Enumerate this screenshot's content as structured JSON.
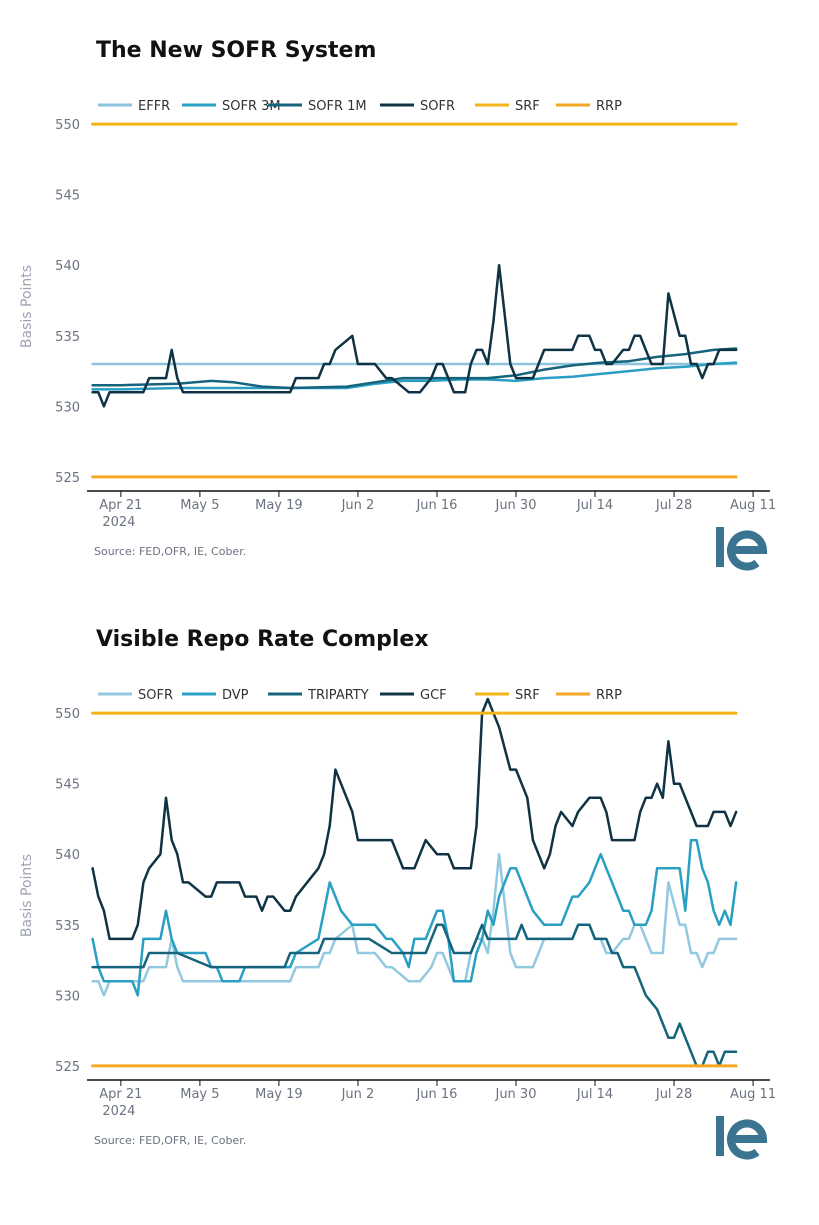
{
  "logo_text": "IE",
  "colors": {
    "logo": "#3a7490",
    "axis": "#111111",
    "srf": "#f5b31a",
    "rrp": "#f5a623"
  },
  "chart_data": [
    {
      "type": "line",
      "title": "The New SOFR System",
      "ylabel": "Basis Points",
      "ylim": [
        524,
        551
      ],
      "yticks": [
        525,
        530,
        535,
        540,
        545,
        550
      ],
      "xlim": [
        -6,
        115
      ],
      "xticks": [
        {
          "x": 0,
          "label": "Apr 21",
          "sub": "2024"
        },
        {
          "x": 14,
          "label": "May 5"
        },
        {
          "x": 28,
          "label": "May 19"
        },
        {
          "x": 42,
          "label": "Jun 2"
        },
        {
          "x": 56,
          "label": "Jun 16"
        },
        {
          "x": 70,
          "label": "Jun 30"
        },
        {
          "x": 84,
          "label": "Jul 14"
        },
        {
          "x": 98,
          "label": "Jul 28"
        },
        {
          "x": 112,
          "label": "Aug 11"
        }
      ],
      "source": "Source: FED,OFR, IE, Cober.",
      "series": [
        {
          "name": "EFFR",
          "color": "#8ec3de",
          "width": 2.5,
          "x": [
            -5,
            109
          ],
          "y": [
            533,
            533
          ]
        },
        {
          "name": "SOFR 3M",
          "color": "#2a9fc4",
          "width": 2.5,
          "x": [
            -5,
            0,
            10,
            20,
            30,
            40,
            45,
            50,
            55,
            60,
            65,
            70,
            75,
            80,
            85,
            90,
            95,
            100,
            105,
            109
          ],
          "y": [
            531.2,
            531.2,
            531.3,
            531.3,
            531.3,
            531.3,
            531.6,
            531.8,
            531.8,
            531.9,
            531.9,
            531.8,
            532.0,
            532.1,
            532.3,
            532.5,
            532.7,
            532.8,
            533.0,
            533.1
          ]
        },
        {
          "name": "SOFR 1M",
          "color": "#15647c",
          "width": 2.5,
          "x": [
            -5,
            0,
            10,
            16,
            20,
            25,
            30,
            40,
            45,
            50,
            55,
            60,
            65,
            70,
            75,
            80,
            85,
            90,
            95,
            100,
            105,
            109
          ],
          "y": [
            531.5,
            531.5,
            531.6,
            531.8,
            531.7,
            531.4,
            531.3,
            531.4,
            531.7,
            532.0,
            532.0,
            532.0,
            532.0,
            532.2,
            532.6,
            532.9,
            533.1,
            533.2,
            533.5,
            533.7,
            534.0,
            534.1
          ]
        },
        {
          "name": "SOFR",
          "color": "#0f3344",
          "width": 2.5,
          "x": [
            -5,
            -4,
            -3,
            -2,
            0,
            4,
            5,
            8,
            9,
            10,
            11,
            16,
            21,
            25,
            30,
            31,
            35,
            36,
            37,
            38,
            41,
            42,
            44,
            45,
            47,
            48,
            51,
            52,
            53,
            55,
            56,
            57,
            58,
            59,
            61,
            62,
            63,
            64,
            65,
            66,
            67,
            69,
            70,
            71,
            72,
            73,
            75,
            77,
            78,
            79,
            80,
            81,
            83,
            84,
            85,
            86,
            87,
            89,
            90,
            91,
            92,
            93,
            94,
            95,
            96,
            97,
            99,
            100,
            101,
            102,
            103,
            104,
            105,
            106,
            107,
            108,
            109
          ],
          "y": [
            531,
            531,
            530,
            531,
            531,
            531,
            532,
            532,
            534,
            532,
            531,
            531,
            531,
            531,
            531,
            532,
            532,
            533,
            533,
            534,
            535,
            533,
            533,
            533,
            532,
            532,
            531,
            531,
            531,
            532,
            533,
            533,
            532,
            531,
            531,
            533,
            534,
            534,
            533,
            536,
            540,
            533,
            532,
            532,
            532,
            532,
            534,
            534,
            534,
            534,
            534,
            535,
            535,
            534,
            534,
            533,
            533,
            534,
            534,
            535,
            535,
            534,
            533,
            533,
            533,
            538,
            535,
            535,
            533,
            533,
            532,
            533,
            533,
            534,
            534,
            534,
            534
          ]
        },
        {
          "name": "SRF",
          "color": "#f5b31a",
          "width": 3,
          "x": [
            -5,
            109
          ],
          "y": [
            550,
            550
          ]
        },
        {
          "name": "RRP",
          "color": "#f5a623",
          "width": 3,
          "x": [
            -5,
            109
          ],
          "y": [
            525,
            525
          ]
        }
      ]
    },
    {
      "type": "line",
      "title": "Visible Repo Rate Complex",
      "ylabel": "Basis Points",
      "ylim": [
        524,
        551
      ],
      "yticks": [
        525,
        530,
        535,
        540,
        545,
        550
      ],
      "xlim": [
        -6,
        115
      ],
      "xticks": [
        {
          "x": 0,
          "label": "Apr 21",
          "sub": "2024"
        },
        {
          "x": 14,
          "label": "May 5"
        },
        {
          "x": 28,
          "label": "May 19"
        },
        {
          "x": 42,
          "label": "Jun 2"
        },
        {
          "x": 56,
          "label": "Jun 16"
        },
        {
          "x": 70,
          "label": "Jun 30"
        },
        {
          "x": 84,
          "label": "Jul 14"
        },
        {
          "x": 98,
          "label": "Jul 28"
        },
        {
          "x": 112,
          "label": "Aug 11"
        }
      ],
      "source": "Source: FED,OFR, IE, Cober.",
      "series": [
        {
          "name": "SOFR",
          "color": "#93c9e0",
          "width": 2.5,
          "x": [
            -5,
            -4,
            -3,
            -2,
            -1,
            0,
            1,
            2,
            3,
            4,
            5,
            6,
            7,
            8,
            9,
            10,
            11,
            20,
            30,
            31,
            35,
            36,
            37,
            38,
            41,
            42,
            44,
            45,
            47,
            48,
            51,
            52,
            53,
            55,
            56,
            57,
            58,
            59,
            61,
            62,
            63,
            64,
            65,
            66,
            67,
            69,
            70,
            71,
            72,
            73,
            75,
            77,
            78,
            79,
            80,
            81,
            83,
            84,
            85,
            86,
            87,
            89,
            90,
            91,
            92,
            93,
            94,
            95,
            96,
            97,
            99,
            100,
            101,
            102,
            103,
            104,
            105,
            106,
            107,
            108,
            109
          ],
          "y": [
            531,
            531,
            530,
            531,
            531,
            531,
            531,
            531,
            531,
            531,
            532,
            532,
            532,
            532,
            534,
            532,
            531,
            531,
            531,
            532,
            532,
            533,
            533,
            534,
            535,
            533,
            533,
            533,
            532,
            532,
            531,
            531,
            531,
            532,
            533,
            533,
            532,
            531,
            531,
            533,
            534,
            534,
            533,
            536,
            540,
            533,
            532,
            532,
            532,
            532,
            534,
            534,
            534,
            534,
            534,
            535,
            535,
            534,
            534,
            533,
            533,
            534,
            534,
            535,
            535,
            534,
            533,
            533,
            533,
            538,
            535,
            535,
            533,
            533,
            532,
            533,
            533,
            534,
            534,
            534,
            534
          ]
        },
        {
          "name": "DVP",
          "color": "#2a9fc4",
          "width": 2.5,
          "x": [
            -5,
            -4,
            -3,
            -2,
            0,
            1,
            2,
            3,
            4,
            5,
            7,
            8,
            9,
            10,
            11,
            15,
            16,
            17,
            18,
            19,
            21,
            22,
            23,
            24,
            30,
            31,
            35,
            36,
            37,
            38,
            39,
            41,
            42,
            44,
            45,
            47,
            48,
            50,
            51,
            52,
            53,
            54,
            56,
            57,
            58,
            59,
            61,
            62,
            63,
            64,
            65,
            66,
            67,
            69,
            70,
            72,
            73,
            75,
            76,
            77,
            78,
            80,
            81,
            83,
            84,
            85,
            86,
            87,
            89,
            90,
            91,
            92,
            93,
            94,
            95,
            96,
            97,
            98,
            99,
            100,
            101,
            102,
            103,
            104,
            105,
            106,
            107,
            108,
            109
          ],
          "y": [
            534,
            532,
            531,
            531,
            531,
            531,
            531,
            530,
            534,
            534,
            534,
            536,
            534,
            533,
            533,
            533,
            532,
            532,
            531,
            531,
            531,
            532,
            532,
            532,
            532,
            533,
            534,
            536,
            538,
            537,
            536,
            535,
            535,
            535,
            535,
            534,
            534,
            533,
            532,
            534,
            534,
            534,
            536,
            536,
            534,
            531,
            531,
            531,
            533,
            534,
            536,
            535,
            537,
            539,
            539,
            537,
            536,
            535,
            535,
            535,
            535,
            537,
            537,
            538,
            539,
            540,
            539,
            538,
            536,
            536,
            535,
            535,
            535,
            536,
            539,
            539,
            539,
            539,
            539,
            536,
            541,
            541,
            539,
            538,
            536,
            535,
            536,
            535,
            538
          ]
        },
        {
          "name": "TRIPARTY",
          "color": "#15647c",
          "width": 2.5,
          "x": [
            -5,
            0,
            4,
            5,
            10,
            16,
            17,
            18,
            29,
            30,
            35,
            36,
            44,
            48,
            54,
            55,
            56,
            57,
            58,
            59,
            62,
            63,
            64,
            65,
            66,
            67,
            69,
            70,
            71,
            72,
            73,
            77,
            78,
            79,
            80,
            81,
            83,
            84,
            85,
            86,
            87,
            88,
            89,
            90,
            91,
            92,
            93,
            95,
            96,
            97,
            98,
            99,
            100,
            101,
            102,
            103,
            104,
            105,
            106,
            107,
            108,
            109
          ],
          "y": [
            532,
            532,
            532,
            533,
            533,
            532,
            532,
            532,
            532,
            533,
            533,
            534,
            534,
            533,
            533,
            534,
            535,
            535,
            534,
            533,
            533,
            534,
            535,
            534,
            534,
            534,
            534,
            534,
            535,
            534,
            534,
            534,
            534,
            534,
            534,
            535,
            535,
            534,
            534,
            534,
            533,
            533,
            532,
            532,
            532,
            531,
            530,
            529,
            528,
            527,
            527,
            528,
            527,
            526,
            525,
            525,
            526,
            526,
            525,
            526,
            526,
            526
          ]
        },
        {
          "name": "GCF",
          "color": "#0f3344",
          "width": 2.5,
          "x": [
            -5,
            -4,
            -3,
            -2,
            0,
            1,
            2,
            3,
            4,
            5,
            7,
            8,
            9,
            10,
            11,
            12,
            15,
            16,
            17,
            18,
            19,
            21,
            22,
            23,
            24,
            25,
            26,
            27,
            29,
            30,
            31,
            35,
            36,
            37,
            38,
            39,
            41,
            42,
            44,
            45,
            47,
            48,
            50,
            51,
            52,
            53,
            54,
            56,
            57,
            58,
            59,
            61,
            62,
            63,
            64,
            65,
            66,
            67,
            69,
            70,
            72,
            73,
            75,
            76,
            77,
            78,
            80,
            81,
            83,
            84,
            85,
            86,
            87,
            89,
            90,
            91,
            92,
            93,
            94,
            95,
            96,
            97,
            98,
            99,
            100,
            101,
            102,
            103,
            104,
            105,
            106,
            107,
            108,
            109
          ],
          "y": [
            539,
            537,
            536,
            534,
            534,
            534,
            534,
            535,
            538,
            539,
            540,
            544,
            541,
            540,
            538,
            538,
            537,
            537,
            538,
            538,
            538,
            538,
            537,
            537,
            537,
            536,
            537,
            537,
            536,
            536,
            537,
            539,
            540,
            542,
            546,
            545,
            543,
            541,
            541,
            541,
            541,
            541,
            539,
            539,
            539,
            540,
            541,
            540,
            540,
            540,
            539,
            539,
            539,
            542,
            550,
            551,
            550,
            549,
            546,
            546,
            544,
            541,
            539,
            540,
            542,
            543,
            542,
            543,
            544,
            544,
            544,
            543,
            541,
            541,
            541,
            541,
            543,
            544,
            544,
            545,
            544,
            548,
            545,
            545,
            544,
            543,
            542,
            542,
            542,
            543,
            543,
            543,
            542,
            543
          ]
        },
        {
          "name": "SRF",
          "color": "#f5b31a",
          "width": 3,
          "x": [
            -5,
            109
          ],
          "y": [
            550,
            550
          ]
        },
        {
          "name": "RRP",
          "color": "#f5a623",
          "width": 3,
          "x": [
            -5,
            109
          ],
          "y": [
            525,
            525
          ]
        }
      ]
    }
  ]
}
